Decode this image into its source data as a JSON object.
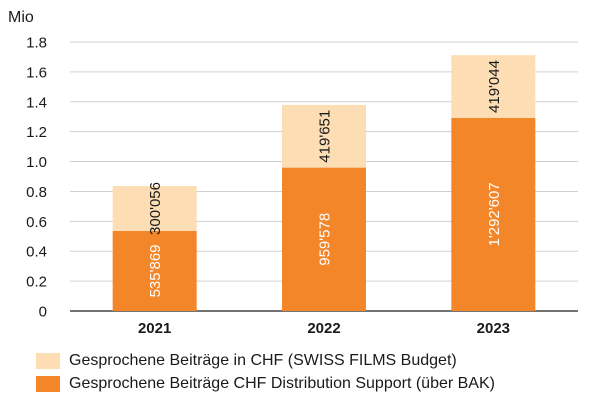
{
  "chart_data": {
    "type": "bar",
    "stacked": true,
    "unit_label": "Mio",
    "categories": [
      "2021",
      "2022",
      "2023"
    ],
    "ylim": [
      0,
      1.8
    ],
    "yticks": [
      "0",
      "0.2",
      "0.4",
      "0.6",
      "0.8",
      "1.0",
      "1.2",
      "1.4",
      "1.6",
      "1.8"
    ],
    "grid": true,
    "legend_position": "bottom",
    "series": [
      {
        "name": "Gesprochene Beiträge CHF Distribution Support (über BAK)",
        "values": [
          0.535869,
          0.959578,
          1.292607
        ],
        "labels": [
          "535'869",
          "959'578",
          "1'292'607"
        ],
        "color": "#F4862A"
      },
      {
        "name": "Gesprochene Beiträge in CHF (SWISS FILMS Budget)",
        "values": [
          0.300056,
          0.419651,
          0.419044
        ],
        "labels": [
          "300'056",
          "419'651",
          "419'044"
        ],
        "color": "#FCDDB4"
      }
    ]
  },
  "legend": [
    {
      "label": "Gesprochene Beiträge in CHF (SWISS FILMS Budget)",
      "color": "#FCDDB4"
    },
    {
      "label": "Gesprochene Beiträge CHF Distribution Support (über BAK)",
      "color": "#F4862A"
    }
  ]
}
